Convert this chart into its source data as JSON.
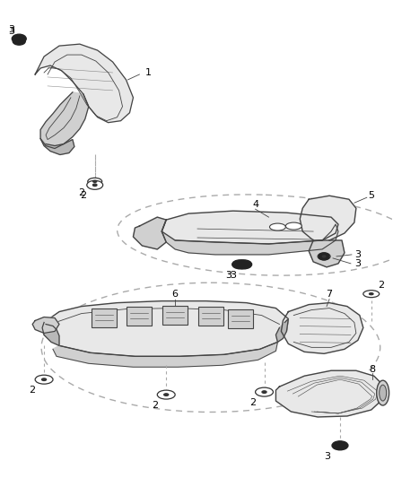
{
  "bg_color": "#ffffff",
  "fig_width": 4.38,
  "fig_height": 5.33,
  "dpi": 100,
  "line_color": "#444444",
  "dashed_color": "#aaaaaa",
  "fill_light": "#e8e8e8",
  "fill_mid": "#d0d0d0",
  "fill_dark": "#b8b8b8"
}
